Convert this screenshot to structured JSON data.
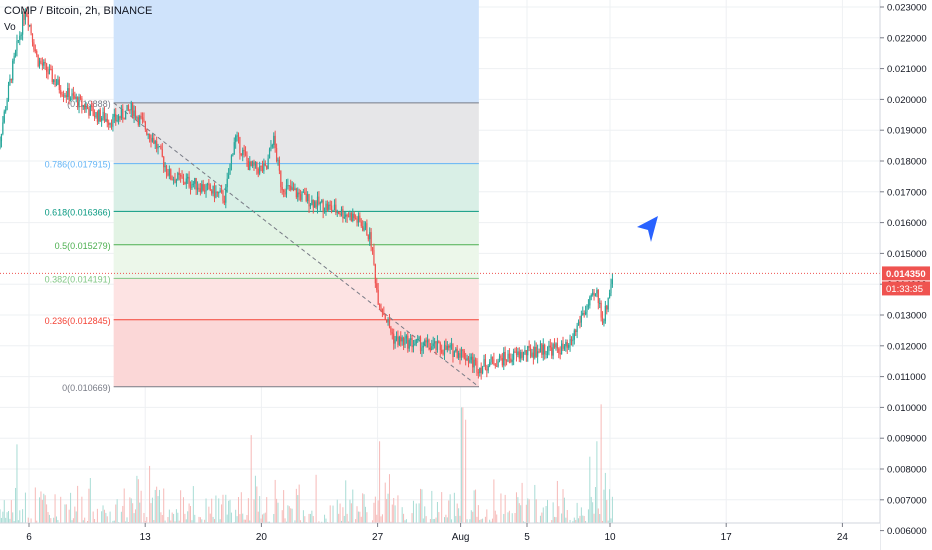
{
  "header": {
    "title": "COMP / Bitcoin, 2h, BINANCE",
    "volume_label": "Vo"
  },
  "colors": {
    "up": "#26a69a",
    "down": "#ef5350",
    "price_line": "#ef5350",
    "arrow": "#2962ff"
  },
  "cursor_icon": "cursor-arrow-icon",
  "price_axis": {
    "current_price": "0.014350",
    "countdown": "01:33:35"
  },
  "chart_data": {
    "type": "candlestick",
    "title": "COMP / Bitcoin, 2h, BINANCE",
    "x_ticks": [
      {
        "label": "6",
        "day": 6
      },
      {
        "label": "13",
        "day": 13
      },
      {
        "label": "20",
        "day": 20
      },
      {
        "label": "27",
        "day": 27
      },
      {
        "label": "Aug",
        "day": 32
      },
      {
        "label": "5",
        "day": 36
      },
      {
        "label": "10",
        "day": 41
      },
      {
        "label": "17",
        "day": 48
      },
      {
        "label": "24",
        "day": 55
      }
    ],
    "y_ticks": [
      "0.023000",
      "0.022000",
      "0.021000",
      "0.020000",
      "0.019000",
      "0.018000",
      "0.017000",
      "0.016000",
      "0.015000",
      "0.014000",
      "0.013000",
      "0.012000",
      "0.011000",
      "0.010000",
      "0.009000",
      "0.008000",
      "0.007000",
      "0.006000"
    ],
    "ylim": [
      0.006,
      0.0233
    ],
    "current_price": 0.01435,
    "fibonacci": {
      "start_day": 11.1,
      "end_day": 33.1,
      "levels": [
        {
          "label": "0.786(0.017915)",
          "price": 0.017915,
          "color": "#64b5f6",
          "fill": "#e3f2fd"
        },
        {
          "label": "0.618(0.016366)",
          "price": 0.016366,
          "color": "#089981",
          "fill": "#d9efe6"
        },
        {
          "label": "0.5(0.015279)",
          "price": 0.015279,
          "color": "#4caf50",
          "fill": "#e2f3e4"
        },
        {
          "label": "0.382(0.014191)",
          "price": 0.014191,
          "color": "#81c784",
          "fill": "#ecf7ea"
        },
        {
          "label": "0.236(0.012845)",
          "price": 0.012845,
          "color": "#f44336",
          "fill": "#fde3e3"
        },
        {
          "label": "0(0.010669)",
          "price": 0.010669,
          "color": "#787b86",
          "fill": "#fbd7d7"
        }
      ],
      "top_label": "(0.019888)",
      "top_price": 0.019888
    },
    "anchors": [
      {
        "day": 4.0,
        "price": 0.018
      },
      {
        "day": 5.0,
        "price": 0.021
      },
      {
        "day": 5.8,
        "price": 0.023
      },
      {
        "day": 6.5,
        "price": 0.0213
      },
      {
        "day": 8.0,
        "price": 0.0203
      },
      {
        "day": 10.0,
        "price": 0.0195
      },
      {
        "day": 11.1,
        "price": 0.0193
      },
      {
        "day": 12.2,
        "price": 0.0197
      },
      {
        "day": 13.5,
        "price": 0.0187
      },
      {
        "day": 14.5,
        "price": 0.0175
      },
      {
        "day": 16.3,
        "price": 0.0172
      },
      {
        "day": 17.8,
        "price": 0.0168
      },
      {
        "day": 18.4,
        "price": 0.0188
      },
      {
        "day": 19.3,
        "price": 0.0178
      },
      {
        "day": 20.3,
        "price": 0.0177
      },
      {
        "day": 20.7,
        "price": 0.0188
      },
      {
        "day": 21.2,
        "price": 0.0172
      },
      {
        "day": 23.0,
        "price": 0.0167
      },
      {
        "day": 25.5,
        "price": 0.0162
      },
      {
        "day": 26.3,
        "price": 0.0158
      },
      {
        "day": 26.6,
        "price": 0.0154
      },
      {
        "day": 27.0,
        "price": 0.0136
      },
      {
        "day": 28.0,
        "price": 0.0122
      },
      {
        "day": 30.0,
        "price": 0.012
      },
      {
        "day": 32.0,
        "price": 0.0118
      },
      {
        "day": 33.1,
        "price": 0.0113
      },
      {
        "day": 34.0,
        "price": 0.0115
      },
      {
        "day": 35.5,
        "price": 0.0117
      },
      {
        "day": 37.0,
        "price": 0.0119
      },
      {
        "day": 38.5,
        "price": 0.0119
      },
      {
        "day": 39.3,
        "price": 0.013
      },
      {
        "day": 40.2,
        "price": 0.0137
      },
      {
        "day": 40.6,
        "price": 0.0128
      },
      {
        "day": 41.2,
        "price": 0.0144
      }
    ],
    "volume_spikes": [
      {
        "day": 5.3,
        "value": 0.0088
      },
      {
        "day": 13.3,
        "value": 0.0081
      },
      {
        "day": 19.4,
        "value": 0.0091
      },
      {
        "day": 27.1,
        "value": 0.0089
      },
      {
        "day": 32.1,
        "value": 0.01
      },
      {
        "day": 32.3,
        "value": 0.0096
      },
      {
        "day": 40.5,
        "value": 0.0101
      },
      {
        "day": 40.2,
        "value": 0.0089
      },
      {
        "day": 39.8,
        "value": 0.0084
      }
    ]
  }
}
